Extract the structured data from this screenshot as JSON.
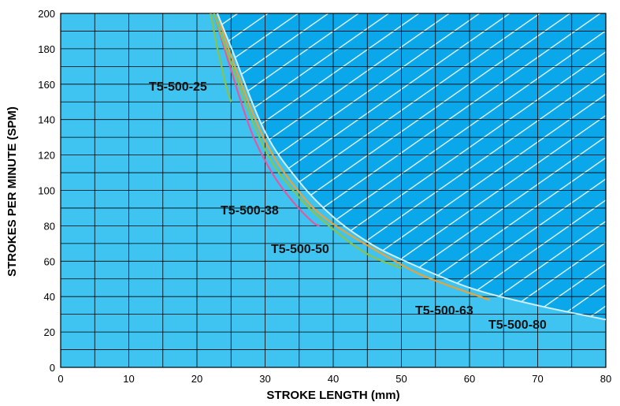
{
  "chart_data": {
    "type": "line",
    "title": "",
    "xlabel": "STROKE LENGTH (mm)",
    "ylabel": "STROKES PER MINUTE (SPM)",
    "xlim": [
      0,
      80
    ],
    "ylim": [
      0,
      200
    ],
    "xticks": [
      "0",
      "10",
      "20",
      "30",
      "40",
      "50",
      "60",
      "70",
      "80"
    ],
    "yticks": [
      "0",
      "20",
      "40",
      "60",
      "80",
      "100",
      "120",
      "140",
      "160",
      "180",
      "200"
    ],
    "grid": true,
    "series": [
      {
        "name": "T5-500-25",
        "color": "#8bc34a",
        "x": [
          22.0,
          22.5,
          23.0,
          23.5,
          24.0,
          24.5,
          25.0
        ],
        "y": [
          200,
          190,
          180,
          172,
          163,
          156,
          150
        ]
      },
      {
        "name": "T5-500-38",
        "color": "#e05aa0",
        "x": [
          22.5,
          25,
          28,
          31,
          34,
          37,
          38
        ],
        "y": [
          200,
          168,
          133,
          110,
          94,
          82,
          80
        ]
      },
      {
        "name": "T5-500-50",
        "color": "#8bc34a",
        "x": [
          22.5,
          25,
          30,
          35,
          40,
          45,
          50
        ],
        "y": [
          200,
          172,
          123,
          96,
          78,
          64,
          56
        ]
      },
      {
        "name": "T5-500-63",
        "color": "#e8a23a",
        "x": [
          23,
          25,
          30,
          35,
          40,
          50,
          55,
          63
        ],
        "y": [
          200,
          176,
          128,
          99,
          81,
          58,
          49,
          38
        ]
      },
      {
        "name": "T5-500-80",
        "color": "#cfeefb",
        "x": [
          23,
          25,
          30,
          35,
          40,
          45,
          50,
          60,
          70,
          80
        ],
        "y": [
          200,
          181,
          133,
          105,
          85,
          71,
          61,
          45,
          35,
          27
        ]
      }
    ],
    "background_color": "#3fc4f2",
    "restricted_region_color": "#0aa8ea"
  }
}
